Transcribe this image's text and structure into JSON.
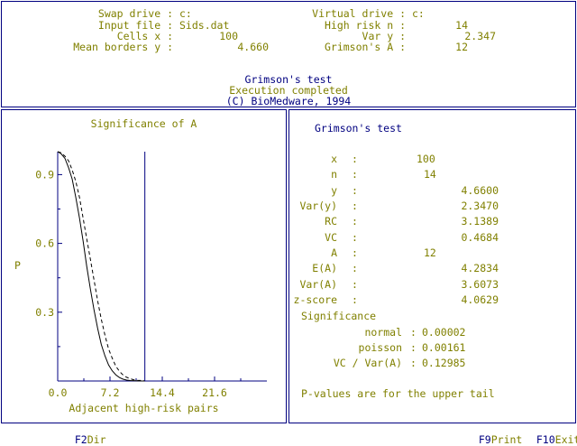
{
  "header": {
    "swap_label": "Swap drive :",
    "swap_value": "c:",
    "input_label": "Input file :",
    "input_value": "Sids.dat",
    "cells_label": "Cells x :",
    "cells_value": "100",
    "mean_label": "Mean borders y :",
    "mean_value": "4.660",
    "virtual_label": "Virtual drive :",
    "virtual_value": "c:",
    "highrisk_label": "High risk n :",
    "highrisk_value": "14",
    "vary_label": "Var y :",
    "vary_value": "2.347",
    "grimsonA_label": "Grimson's A :",
    "grimsonA_value": "12",
    "test_title": "Grimson's test",
    "status": "Execution completed",
    "copyright": "(C) BioMedware, 1994"
  },
  "left_panel": {
    "title": "Significance of A",
    "xlabel": "Adjacent high-risk pairs",
    "ylabel": "P"
  },
  "chart_data": {
    "type": "line",
    "title": "Significance of A",
    "xlabel": "Adjacent high-risk pairs",
    "ylabel": "P",
    "xlim": [
      0,
      28.8
    ],
    "ylim": [
      0,
      1.0
    ],
    "xticks": [
      "0.0",
      "7.2",
      "14.4",
      "21.6"
    ],
    "yticks": [
      "0.3",
      "0.6",
      "0.9"
    ],
    "marker_line_x": 12,
    "series": [
      {
        "style": "solid",
        "x": [
          0,
          0.5,
          1,
          1.5,
          2,
          2.5,
          3,
          3.5,
          4,
          4.5,
          5,
          5.5,
          6,
          6.5,
          7,
          7.5,
          8,
          8.5,
          9,
          9.5,
          10,
          11,
          12
        ],
        "y": [
          1.0,
          0.99,
          0.97,
          0.93,
          0.88,
          0.8,
          0.71,
          0.61,
          0.5,
          0.4,
          0.31,
          0.23,
          0.16,
          0.11,
          0.07,
          0.045,
          0.027,
          0.015,
          0.008,
          0.004,
          0.002,
          0.0005,
          0.0001
        ]
      },
      {
        "style": "dashed",
        "x": [
          0,
          0.5,
          1,
          1.5,
          2,
          2.5,
          3,
          3.5,
          4,
          4.5,
          5,
          5.5,
          6,
          6.5,
          7,
          7.5,
          8,
          8.5,
          9,
          9.5,
          10,
          10.5,
          11,
          12
        ],
        "y": [
          1.0,
          0.995,
          0.98,
          0.96,
          0.92,
          0.87,
          0.8,
          0.71,
          0.62,
          0.53,
          0.44,
          0.35,
          0.27,
          0.2,
          0.14,
          0.1,
          0.065,
          0.042,
          0.026,
          0.016,
          0.01,
          0.005,
          0.003,
          0.001
        ]
      }
    ]
  },
  "right_panel": {
    "title": "Grimson's test",
    "rows": [
      {
        "label": "x",
        "value": "100"
      },
      {
        "label": "n",
        "value": "14"
      },
      {
        "label": "y",
        "value": "4.6600"
      },
      {
        "label": "Var(y)",
        "value": "2.3470"
      },
      {
        "label": "RC",
        "value": "3.1389"
      },
      {
        "label": "VC",
        "value": "0.4684"
      },
      {
        "label": "A",
        "value": "12"
      },
      {
        "label": "E(A)",
        "value": "4.2834"
      },
      {
        "label": "Var(A)",
        "value": "3.6073"
      },
      {
        "label": "z-score",
        "value": "4.0629"
      }
    ],
    "significance_label": "Significance",
    "sig_rows": [
      {
        "label": "normal",
        "value": "0.00002"
      },
      {
        "label": "poisson",
        "value": "0.00161"
      },
      {
        "label": "VC / Var(A)",
        "value": "0.12985"
      }
    ],
    "footnote": "P-values are for the upper tail"
  },
  "footer": {
    "f2_key": "F2",
    "f2_label": "Dir",
    "f9_key": "F9",
    "f9_label": "Print",
    "f10_key": "F10",
    "f10_label": "Exit"
  },
  "colors": {
    "label": "#808000",
    "accent": "#000080",
    "background": "#ffffff"
  }
}
